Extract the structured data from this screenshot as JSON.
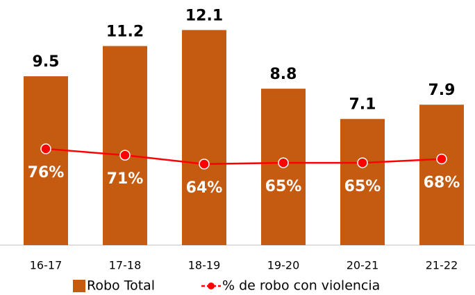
{
  "chart_data": {
    "type": "bar-line",
    "categories": [
      "16-17",
      "17-18",
      "18-19",
      "19-20",
      "20-21",
      "21-22"
    ],
    "series": [
      {
        "name": "Robo Total",
        "type": "bar",
        "color": "#c55a11",
        "values": [
          9.5,
          11.2,
          12.1,
          8.8,
          7.1,
          7.9
        ]
      },
      {
        "name": "% de robo con violencia",
        "type": "line",
        "axis": "y2",
        "color": "#ff0000",
        "values": [
          76,
          71,
          64,
          65,
          65,
          68
        ],
        "value_labels": [
          "76%",
          "71%",
          "64%",
          "65%",
          "65%",
          "68%"
        ]
      }
    ],
    "ylim": [
      0,
      13.4
    ],
    "y2lim": [
      0,
      188
    ],
    "legend": "bottom"
  }
}
